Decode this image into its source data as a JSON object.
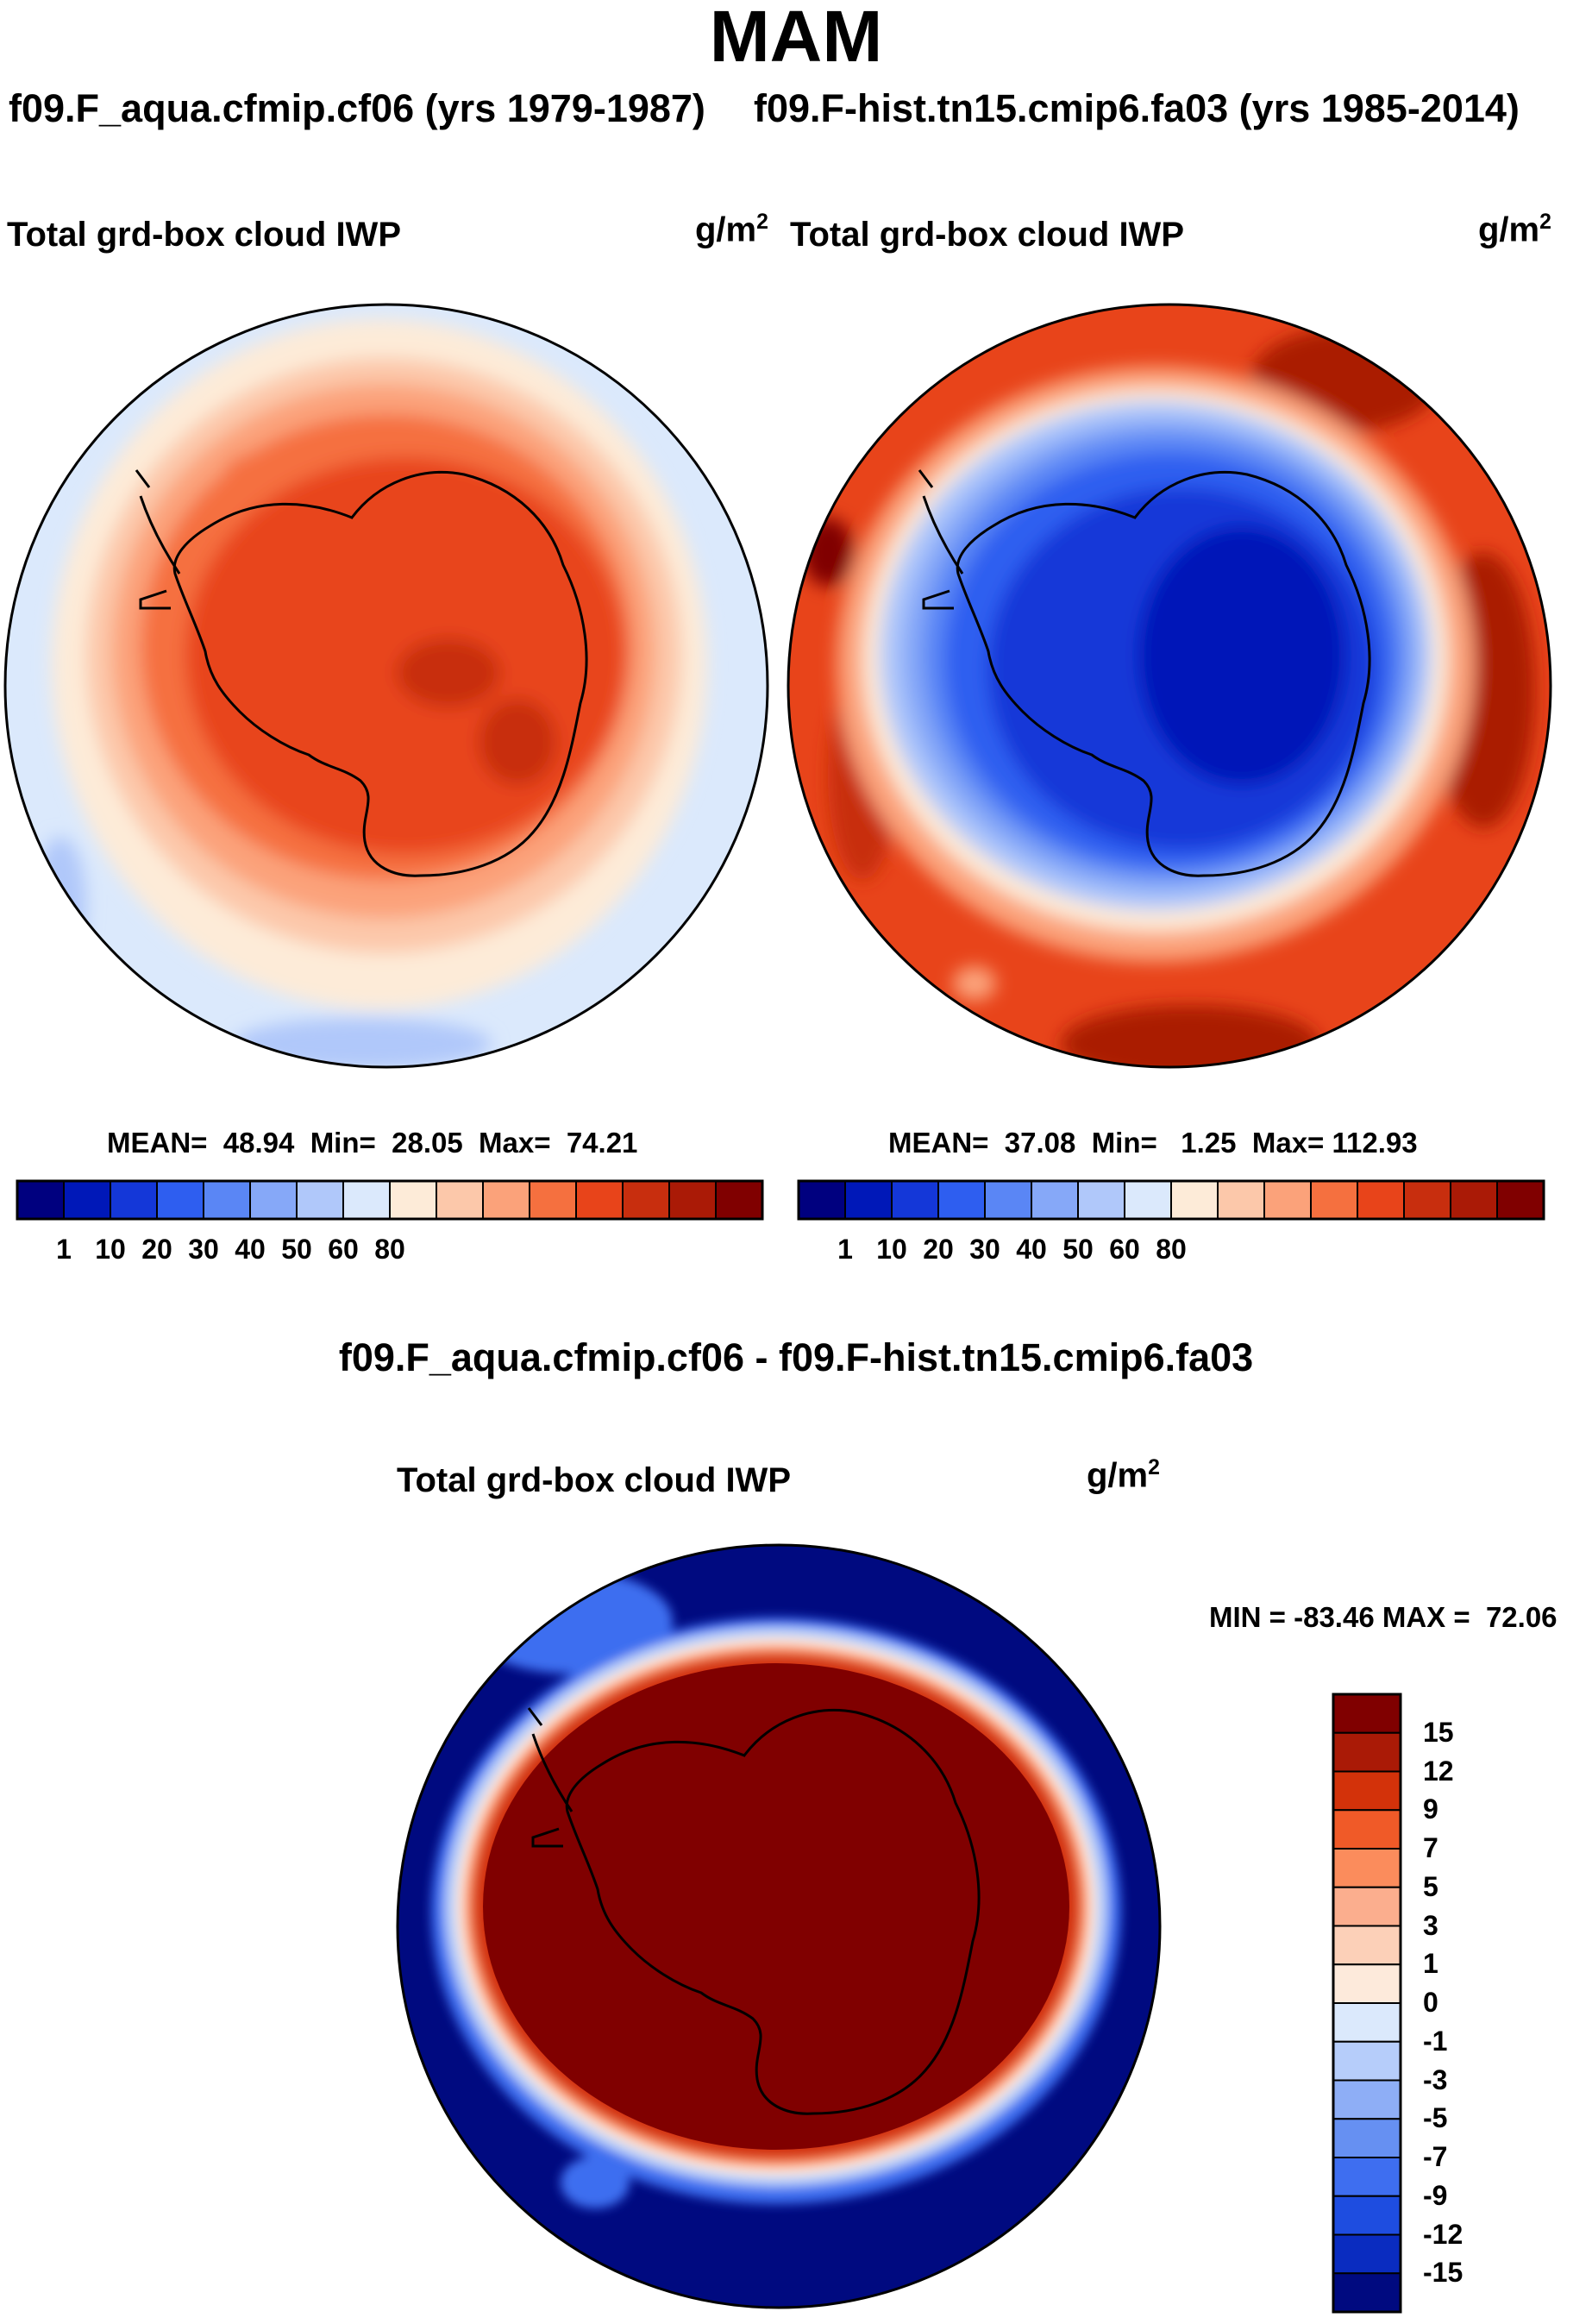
{
  "season": "MAM",
  "left_panel": {
    "case": "f09.F_aqua.cfmip.cf06 (yrs 1979-1987)",
    "variable": "Total grd-box cloud IWP",
    "units_base": "g/m",
    "units_exp": "2",
    "stats": "MEAN=  48.94  Min=  28.05  Max=  74.21"
  },
  "right_panel": {
    "case": "f09.F-hist.tn15.cmip6.fa03 (yrs 1985-2014)",
    "variable": "Total grd-box cloud IWP",
    "units_base": "g/m",
    "units_exp": "2",
    "stats": "MEAN=  37.08  Min=   1.25  Max= 112.93"
  },
  "diff_panel": {
    "title": "f09.F_aqua.cfmip.cf06 - f09.F-hist.tn15.cmip6.fa03",
    "variable": "Total grd-box cloud IWP",
    "units_base": "g/m",
    "units_exp": "2",
    "stats": "MIN = -83.46 MAX =  72.06"
  },
  "abs_colorbar": {
    "colors": [
      "#00007f",
      "#0018b8",
      "#1437d8",
      "#2e5ef0",
      "#5a86f5",
      "#86a8f8",
      "#b0c8fa",
      "#dbe9fc",
      "#fdebd8",
      "#fcc8aa",
      "#fba27a",
      "#f5703f",
      "#e8441a",
      "#c82e0e",
      "#aa1a06",
      "#800000"
    ],
    "tick_labels": [
      "1",
      "10",
      "20",
      "30",
      "40",
      "50",
      "60",
      "80"
    ]
  },
  "diff_colorbar": {
    "colors": [
      "#800000",
      "#aa1a06",
      "#d3320a",
      "#f05a28",
      "#fb8c5c",
      "#fbae8e",
      "#fcd0b8",
      "#fdeadb",
      "#dbe9fc",
      "#b6cdfa",
      "#8eaef6",
      "#6690f2",
      "#3e6ef0",
      "#1e4de0",
      "#0a2cc0",
      "#000a80"
    ],
    "tick_labels": [
      "15",
      "12",
      "9",
      "7",
      "5",
      "3",
      "1",
      "0",
      "-1",
      "-3",
      "-5",
      "-7",
      "-9",
      "-12",
      "-15"
    ]
  }
}
